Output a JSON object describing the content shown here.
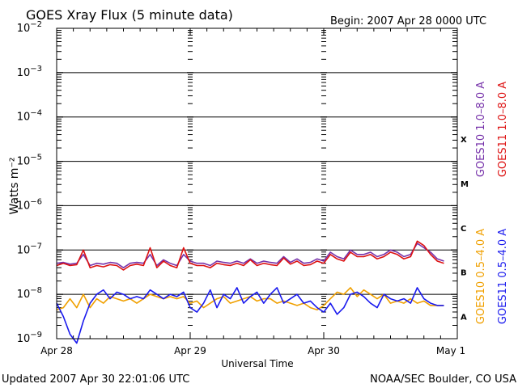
{
  "header": {
    "title": "GOES Xray Flux (5 minute data)",
    "begin": "Begin:  2007 Apr 28 0000 UTC"
  },
  "footer": {
    "updated": "Updated 2007 Apr 30 22:01:06 UTC",
    "credit": "NOAA/SEC Boulder, CO USA"
  },
  "chart_data": {
    "type": "line",
    "title": "GOES Xray Flux (5 minute data)",
    "xlabel": "Universal Time",
    "ylabel": "Watts m⁻²",
    "x_ticks": [
      "Apr 28",
      "Apr 29",
      "Apr 30",
      "May 1"
    ],
    "x_unit": "day",
    "xlim": [
      0,
      3
    ],
    "ylim_log10": [
      -9,
      -2
    ],
    "y_scale": "log",
    "y_tick_labels": [
      {
        "base": "10",
        "exp": "−2",
        "log": -2
      },
      {
        "base": "10",
        "exp": "−3",
        "log": -3
      },
      {
        "base": "10",
        "exp": "−4",
        "log": -4
      },
      {
        "base": "10",
        "exp": "−5",
        "log": -5
      },
      {
        "base": "10",
        "exp": "−6",
        "log": -6
      },
      {
        "base": "10",
        "exp": "−7",
        "log": -7
      },
      {
        "base": "10",
        "exp": "−8",
        "log": -8
      },
      {
        "base": "10",
        "exp": "−9",
        "log": -9
      }
    ],
    "flare_classes": [
      {
        "label": "X",
        "band_log10": -4
      },
      {
        "label": "M",
        "band_log10": -5
      },
      {
        "label": "C",
        "band_log10": -6
      },
      {
        "label": "B",
        "band_log10": -7
      },
      {
        "label": "A",
        "band_log10": -8
      }
    ],
    "grid": true,
    "legend_position": "right, rotated vertical",
    "series": [
      {
        "name": "GOES10 1.0–8.0 A",
        "color": "#7733aa",
        "x": [
          0,
          0.05,
          0.1,
          0.15,
          0.2,
          0.25,
          0.3,
          0.35,
          0.4,
          0.45,
          0.5,
          0.55,
          0.6,
          0.65,
          0.7,
          0.75,
          0.8,
          0.85,
          0.9,
          0.95,
          1.0,
          1.05,
          1.1,
          1.15,
          1.2,
          1.25,
          1.3,
          1.35,
          1.4,
          1.45,
          1.5,
          1.55,
          1.6,
          1.65,
          1.7,
          1.75,
          1.8,
          1.85,
          1.9,
          1.95,
          2.0,
          2.05,
          2.1,
          2.15,
          2.2,
          2.25,
          2.3,
          2.35,
          2.4,
          2.45,
          2.5,
          2.55,
          2.6,
          2.65,
          2.7,
          2.75,
          2.8,
          2.85,
          2.9
        ],
        "log10": [
          -7.3,
          -7.28,
          -7.32,
          -7.3,
          -7.1,
          -7.35,
          -7.3,
          -7.32,
          -7.28,
          -7.3,
          -7.4,
          -7.3,
          -7.28,
          -7.3,
          -7.1,
          -7.35,
          -7.22,
          -7.3,
          -7.35,
          -7.1,
          -7.25,
          -7.3,
          -7.3,
          -7.35,
          -7.25,
          -7.28,
          -7.3,
          -7.25,
          -7.3,
          -7.2,
          -7.3,
          -7.25,
          -7.28,
          -7.3,
          -7.15,
          -7.28,
          -7.2,
          -7.3,
          -7.28,
          -7.2,
          -7.25,
          -7.05,
          -7.15,
          -7.2,
          -7.0,
          -7.1,
          -7.1,
          -7.05,
          -7.15,
          -7.1,
          -7.0,
          -7.05,
          -7.15,
          -7.1,
          -6.85,
          -6.95,
          -7.05,
          -7.2,
          -7.25
        ]
      },
      {
        "name": "GOES11 1.0–8.0 A",
        "color": "#dd1111",
        "x": [
          0,
          0.05,
          0.1,
          0.15,
          0.2,
          0.25,
          0.3,
          0.35,
          0.4,
          0.45,
          0.5,
          0.55,
          0.6,
          0.65,
          0.7,
          0.75,
          0.8,
          0.85,
          0.9,
          0.95,
          1.0,
          1.05,
          1.1,
          1.15,
          1.2,
          1.25,
          1.3,
          1.35,
          1.4,
          1.45,
          1.5,
          1.55,
          1.6,
          1.65,
          1.7,
          1.75,
          1.8,
          1.85,
          1.9,
          1.95,
          2.0,
          2.05,
          2.1,
          2.15,
          2.2,
          2.25,
          2.3,
          2.35,
          2.4,
          2.45,
          2.5,
          2.55,
          2.6,
          2.65,
          2.7,
          2.75,
          2.8,
          2.85,
          2.9
        ],
        "log10": [
          -7.35,
          -7.3,
          -7.35,
          -7.33,
          -7.0,
          -7.4,
          -7.35,
          -7.38,
          -7.33,
          -7.35,
          -7.45,
          -7.35,
          -7.32,
          -7.35,
          -6.95,
          -7.4,
          -7.25,
          -7.35,
          -7.4,
          -6.95,
          -7.3,
          -7.35,
          -7.35,
          -7.4,
          -7.3,
          -7.33,
          -7.35,
          -7.3,
          -7.35,
          -7.22,
          -7.35,
          -7.3,
          -7.33,
          -7.35,
          -7.18,
          -7.32,
          -7.25,
          -7.35,
          -7.33,
          -7.25,
          -7.3,
          -7.1,
          -7.2,
          -7.25,
          -7.05,
          -7.15,
          -7.15,
          -7.1,
          -7.2,
          -7.15,
          -7.05,
          -7.1,
          -7.2,
          -7.15,
          -6.8,
          -6.9,
          -7.1,
          -7.25,
          -7.3
        ]
      },
      {
        "name": "GOES10 0.5–4.0 A",
        "color": "#f0a000",
        "x": [
          0,
          0.05,
          0.1,
          0.15,
          0.2,
          0.25,
          0.3,
          0.35,
          0.4,
          0.45,
          0.5,
          0.55,
          0.6,
          0.65,
          0.7,
          0.75,
          0.8,
          0.85,
          0.9,
          0.95,
          1.0,
          1.05,
          1.1,
          1.15,
          1.2,
          1.25,
          1.3,
          1.35,
          1.4,
          1.45,
          1.5,
          1.55,
          1.6,
          1.65,
          1.7,
          1.75,
          1.8,
          1.85,
          1.9,
          1.95,
          2.0,
          2.05,
          2.1,
          2.15,
          2.2,
          2.25,
          2.3,
          2.35,
          2.4,
          2.45,
          2.5,
          2.55,
          2.6,
          2.65,
          2.7,
          2.75,
          2.8,
          2.85,
          2.9
        ],
        "log10": [
          -8.35,
          -8.3,
          -8.1,
          -8.3,
          -8.0,
          -8.3,
          -8.1,
          -8.2,
          -8.05,
          -8.1,
          -8.15,
          -8.1,
          -8.2,
          -8.1,
          -8.0,
          -8.05,
          -8.1,
          -8.05,
          -8.1,
          -8.05,
          -8.2,
          -8.15,
          -8.3,
          -8.2,
          -8.1,
          -8.05,
          -8.2,
          -8.15,
          -8.1,
          -8.05,
          -8.15,
          -8.1,
          -8.1,
          -8.2,
          -8.15,
          -8.2,
          -8.25,
          -8.2,
          -8.3,
          -8.35,
          -8.25,
          -8.1,
          -7.95,
          -8.0,
          -7.85,
          -8.05,
          -7.9,
          -8.0,
          -8.1,
          -8.0,
          -8.2,
          -8.15,
          -8.2,
          -8.1,
          -8.2,
          -8.15,
          -8.25,
          -8.25,
          -8.25
        ]
      },
      {
        "name": "GOES11 0.5–4.0 A",
        "color": "#1a1aee",
        "x": [
          0,
          0.05,
          0.1,
          0.15,
          0.2,
          0.25,
          0.3,
          0.35,
          0.4,
          0.45,
          0.5,
          0.55,
          0.6,
          0.65,
          0.7,
          0.75,
          0.8,
          0.85,
          0.9,
          0.95,
          1.0,
          1.05,
          1.1,
          1.15,
          1.2,
          1.25,
          1.3,
          1.35,
          1.4,
          1.45,
          1.5,
          1.55,
          1.6,
          1.65,
          1.7,
          1.75,
          1.8,
          1.85,
          1.9,
          1.95,
          2.0,
          2.05,
          2.1,
          2.15,
          2.2,
          2.25,
          2.3,
          2.35,
          2.4,
          2.45,
          2.5,
          2.55,
          2.6,
          2.65,
          2.7,
          2.75,
          2.8,
          2.85,
          2.9
        ],
        "log10": [
          -8.2,
          -8.5,
          -8.9,
          -9.1,
          -8.6,
          -8.2,
          -8.0,
          -7.9,
          -8.1,
          -7.95,
          -8.0,
          -8.1,
          -8.05,
          -8.1,
          -7.9,
          -8.0,
          -8.1,
          -8.0,
          -8.05,
          -7.95,
          -8.3,
          -8.4,
          -8.2,
          -7.9,
          -8.3,
          -8.0,
          -8.1,
          -7.85,
          -8.2,
          -8.05,
          -7.95,
          -8.2,
          -8.0,
          -7.85,
          -8.2,
          -8.1,
          -8.0,
          -8.2,
          -8.15,
          -8.3,
          -8.4,
          -8.2,
          -8.45,
          -8.3,
          -8.0,
          -7.95,
          -8.05,
          -8.2,
          -8.3,
          -8.0,
          -8.1,
          -8.15,
          -8.1,
          -8.2,
          -7.85,
          -8.1,
          -8.2,
          -8.25,
          -8.25
        ]
      }
    ]
  }
}
